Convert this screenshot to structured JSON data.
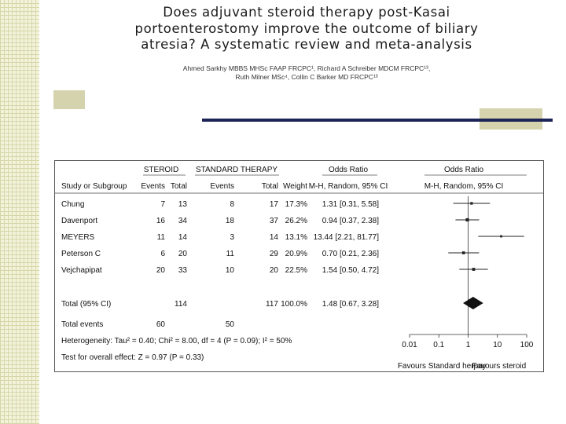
{
  "slide": {
    "title_lines": [
      "Does adjuvant steroid therapy post-Kasai",
      "portoenterostomy improve the outcome of biliary",
      "atresia? A systematic review and meta-analysis"
    ],
    "author_lines": [
      "Ahmed Sarkhy MBBS MHSc FAAP FRCPC¹, Richard A Schreiber MDCM FRCPC¹³,",
      "Ruth Milner MSc⁴, Collin C Barker MD FRCPC¹³"
    ]
  },
  "colors": {
    "accent_box": "#d4d3ae",
    "accent_line": "#1c2357",
    "side_pattern": "#f3f3dc"
  },
  "table": {
    "group_headers": {
      "steroid": "STEROID",
      "standard": "STANDARD THERAPY",
      "or_col": "Odds Ratio",
      "or_plot": "Odds Ratio"
    },
    "col_headers": {
      "study": "Study or Subgroup",
      "events1": "Events",
      "total1": "Total",
      "events2": "Events",
      "total2": "Total",
      "weight": "Weight",
      "method": "M-H, Random, 95% CI",
      "method_plot": "M-H, Random, 95% CI"
    },
    "rows": [
      {
        "study": "Chung",
        "events1": "7",
        "total1": "13",
        "events2": "8",
        "total2": "17",
        "weight": "17.3%",
        "ci_text": "1.31 [0.31, 5.58]"
      },
      {
        "study": "Davenport",
        "events1": "16",
        "total1": "34",
        "events2": "18",
        "total2": "37",
        "weight": "26.2%",
        "ci_text": "0.94 [0.37, 2.38]"
      },
      {
        "study": "MEYERS",
        "events1": "11",
        "total1": "14",
        "events2": "3",
        "total2": "14",
        "weight": "13.1%",
        "ci_text": "13.44 [2.21, 81.77]"
      },
      {
        "study": "Peterson C",
        "events1": "6",
        "total1": "20",
        "events2": "11",
        "total2": "29",
        "weight": "20.9%",
        "ci_text": "0.70 [0.21, 2.36]"
      },
      {
        "study": "Vejchapipat",
        "events1": "20",
        "total1": "33",
        "events2": "10",
        "total2": "20",
        "weight": "22.5%",
        "ci_text": "1.54 [0.50, 4.72]"
      }
    ],
    "total_row": {
      "study": "Total (95% CI)",
      "total1": "114",
      "total2": "117",
      "weight": "100.0%",
      "ci_text": "1.48 [0.67, 3.28]"
    },
    "events_row": {
      "label": "Total events",
      "events1": "60",
      "events2": "50"
    },
    "heterogeneity": "Heterogeneity: Tau² = 0.40; Chi² = 8.00, df = 4 (P = 0.09); I² = 50%",
    "overall_test": "Test for overall effect: Z = 0.97 (P = 0.33)",
    "axis": {
      "ticks": [
        "0.01",
        "0.1",
        "1",
        "10",
        "100"
      ],
      "favours_left": "Favours Standard herpay",
      "favours_right": "Favours steroid"
    }
  },
  "chart_data": {
    "type": "forest",
    "scale": "log",
    "xlim": [
      0.01,
      100
    ],
    "null_line": 1,
    "studies": [
      {
        "name": "Chung",
        "or": 1.31,
        "ci": [
          0.31,
          5.58
        ],
        "weight": 17.3
      },
      {
        "name": "Davenport",
        "or": 0.94,
        "ci": [
          0.37,
          2.38
        ],
        "weight": 26.2
      },
      {
        "name": "MEYERS",
        "or": 13.44,
        "ci": [
          2.21,
          81.77
        ],
        "weight": 13.1
      },
      {
        "name": "Peterson C",
        "or": 0.7,
        "ci": [
          0.21,
          2.36
        ],
        "weight": 20.9
      },
      {
        "name": "Vejchapipat",
        "or": 1.54,
        "ci": [
          0.5,
          4.72
        ],
        "weight": 22.5
      }
    ],
    "pooled": {
      "name": "Total (95% CI)",
      "or": 1.48,
      "ci": [
        0.67,
        3.28
      ]
    }
  }
}
